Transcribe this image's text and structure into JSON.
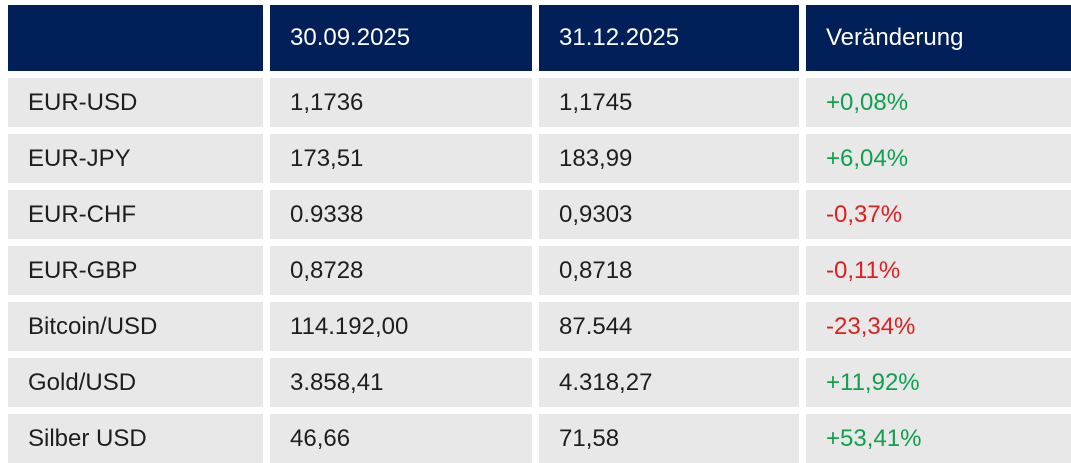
{
  "chart_data": {
    "type": "table",
    "title": "",
    "columns": [
      "",
      "30.09.2025",
      "31.12.2025",
      "Veränderung"
    ],
    "rows": [
      {
        "label": "EUR-USD",
        "start": "1,1736",
        "end": "1,1745",
        "change": "+0,08%",
        "trend": "positive"
      },
      {
        "label": "EUR-JPY",
        "start": "173,51",
        "end": "183,99",
        "change": "+6,04%",
        "trend": "positive"
      },
      {
        "label": "EUR-CHF",
        "start": "0.9338",
        "end": "0,9303",
        "change": "-0,37%",
        "trend": "negative"
      },
      {
        "label": "EUR-GBP",
        "start": "0,8728",
        "end": "0,8718",
        "change": "-0,11%",
        "trend": "negative"
      },
      {
        "label": "Bitcoin/USD",
        "start": "114.192,00",
        "end": "87.544",
        "change": "-23,34%",
        "trend": "negative"
      },
      {
        "label": "Gold/USD",
        "start": "3.858,41",
        "end": "4.318,27",
        "change": "+11,92%",
        "trend": "positive"
      },
      {
        "label": "Silber USD",
        "start": "46,66",
        "end": "71,58",
        "change": "+53,41%",
        "trend": "positive"
      }
    ]
  },
  "colors": {
    "header_bg": "#01205A",
    "header_text": "#FFFFFF",
    "row_bg": "#E8E8E8",
    "text": "#1E1E1E",
    "positive": "#10A04E",
    "negative": "#DF1F1F",
    "gap_bg": "#FFFFFF"
  }
}
